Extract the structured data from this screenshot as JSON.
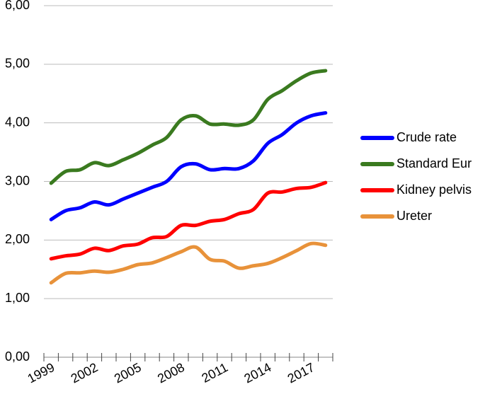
{
  "chart_data": {
    "type": "line",
    "categories": [
      "1999",
      null,
      null,
      "2002",
      null,
      null,
      "2005",
      null,
      null,
      "2008",
      null,
      null,
      "2011",
      null,
      null,
      "2014",
      null,
      null,
      "2017",
      null
    ],
    "series": [
      {
        "name": "Crude rate",
        "color": "#0000ff",
        "values": [
          2.35,
          2.5,
          2.55,
          2.65,
          2.6,
          2.7,
          2.8,
          2.9,
          3.0,
          3.25,
          3.3,
          3.2,
          3.22,
          3.22,
          3.35,
          3.65,
          3.8,
          4.0,
          4.12,
          4.17
        ]
      },
      {
        "name": "Standard Eur",
        "color": "#3a7a1f",
        "values": [
          2.97,
          3.17,
          3.2,
          3.32,
          3.27,
          3.37,
          3.48,
          3.62,
          3.75,
          4.05,
          4.12,
          3.98,
          3.98,
          3.96,
          4.05,
          4.4,
          4.55,
          4.72,
          4.85,
          4.89
        ]
      },
      {
        "name": "Kidney pelvis",
        "color": "#ff0000",
        "values": [
          1.68,
          1.73,
          1.76,
          1.86,
          1.82,
          1.9,
          1.93,
          2.04,
          2.06,
          2.25,
          2.25,
          2.32,
          2.35,
          2.45,
          2.52,
          2.8,
          2.82,
          2.88,
          2.9,
          2.98
        ]
      },
      {
        "name": "Ureter",
        "color": "#e8923a",
        "values": [
          1.27,
          1.43,
          1.44,
          1.47,
          1.45,
          1.5,
          1.58,
          1.61,
          1.7,
          1.8,
          1.88,
          1.67,
          1.64,
          1.52,
          1.56,
          1.6,
          1.7,
          1.82,
          1.94,
          1.91
        ]
      }
    ],
    "ylim": [
      0,
      6
    ],
    "yticks": [
      {
        "value": 0,
        "label": "0,00"
      },
      {
        "value": 1,
        "label": "1,00"
      },
      {
        "value": 2,
        "label": "2,00"
      },
      {
        "value": 3,
        "label": "3,00"
      },
      {
        "value": 4,
        "label": "4,00"
      },
      {
        "value": 5,
        "label": "5,00"
      },
      {
        "value": 6,
        "label": "6,00"
      }
    ],
    "grid": true,
    "legend": "right"
  }
}
